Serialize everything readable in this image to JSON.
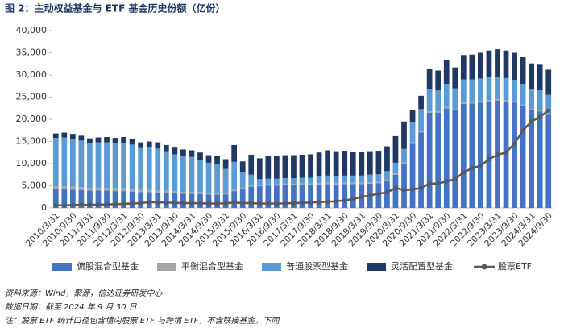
{
  "chart_data": {
    "type": "bar",
    "stacked": true,
    "title": "图 2：主动权益基金与 ETF 基金历史份额（亿份）",
    "categories": [
      "2010/3/31",
      null,
      "2010/9/30",
      null,
      "2011/3/31",
      null,
      "2011/9/30",
      null,
      "2012/3/31",
      null,
      "2012/9/30",
      null,
      "2013/3/31",
      null,
      "2013/9/30",
      null,
      "2014/3/31",
      null,
      "2014/9/30",
      null,
      "2015/3/31",
      null,
      "2015/9/30",
      null,
      "2016/3/31",
      null,
      "2016/9/30",
      null,
      "2017/3/31",
      null,
      "2017/9/30",
      null,
      "2018/3/31",
      null,
      "2018/9/30",
      null,
      "2019/3/31",
      null,
      "2019/9/30",
      null,
      "2020/3/31",
      null,
      "2020/9/30",
      null,
      "2021/3/31",
      null,
      "2021/9/30",
      null,
      "2022/3/31",
      null,
      "2022/9/30",
      null,
      "2023/3/31",
      null,
      "2023/9/30",
      null,
      "2024/3/31",
      null,
      "2024/9/30"
    ],
    "series": [
      {
        "name": "偏股混合型基金",
        "color": "#4472c4",
        "values": [
          4200,
          4200,
          4100,
          4000,
          3900,
          3900,
          3900,
          3800,
          3800,
          3700,
          3600,
          3600,
          3500,
          3400,
          3300,
          3200,
          3200,
          3100,
          3000,
          3000,
          3000,
          3800,
          4200,
          4800,
          4900,
          5000,
          5000,
          5100,
          5100,
          5200,
          5200,
          5300,
          5400,
          5300,
          5400,
          5400,
          5400,
          5500,
          5600,
          6000,
          7500,
          10000,
          14500,
          17000,
          21500,
          21500,
          22500,
          22000,
          23500,
          23600,
          23800,
          24000,
          24200,
          24000,
          23800,
          23000,
          22000,
          21800,
          21000
        ]
      },
      {
        "name": "平衡混合型基金",
        "color": "#a5a5a5",
        "values": [
          700,
          700,
          700,
          700,
          600,
          600,
          600,
          600,
          600,
          600,
          500,
          500,
          500,
          500,
          500,
          400,
          400,
          400,
          400,
          400,
          300,
          300,
          300,
          300,
          300,
          300,
          300,
          300,
          300,
          300,
          300,
          300,
          300,
          300,
          300,
          300,
          300,
          300,
          300,
          300,
          300,
          300,
          300,
          300,
          300,
          300,
          300,
          300,
          300,
          300,
          300,
          300,
          300,
          300,
          300,
          300,
          300,
          300,
          300
        ]
      },
      {
        "name": "普通股票型基金",
        "color": "#5b9bd5",
        "values": [
          10900,
          11000,
          10800,
          10500,
          10100,
          10300,
          10300,
          10200,
          10300,
          10000,
          9400,
          9500,
          9400,
          8900,
          8300,
          8100,
          7900,
          7400,
          6800,
          6600,
          5500,
          6300,
          3500,
          2400,
          1300,
          1300,
          1300,
          1300,
          1300,
          1300,
          1300,
          1500,
          1600,
          1600,
          1600,
          1600,
          1600,
          1700,
          1700,
          2000,
          2400,
          3000,
          4500,
          5000,
          5000,
          4700,
          5200,
          4700,
          5200,
          5100,
          5100,
          5200,
          5100,
          5000,
          4800,
          4700,
          4500,
          4400,
          4200
        ]
      },
      {
        "name": "灵活配置型基金",
        "color": "#203864",
        "values": [
          1000,
          1100,
          1100,
          1100,
          1100,
          1100,
          1200,
          1200,
          1300,
          1300,
          1300,
          1400,
          1400,
          1400,
          1500,
          1500,
          1500,
          1600,
          1700,
          1800,
          2200,
          3800,
          2500,
          4500,
          4700,
          5200,
          5200,
          5200,
          5200,
          5200,
          5300,
          5400,
          5700,
          5600,
          5600,
          5400,
          5300,
          5300,
          5300,
          5600,
          6000,
          6200,
          2700,
          3000,
          4500,
          4500,
          5300,
          4700,
          5500,
          5600,
          5800,
          6000,
          6200,
          6200,
          6100,
          6000,
          5800,
          5800,
          5700
        ]
      },
      {
        "name": "股票ETF",
        "color": "#595959",
        "type": "line",
        "values": [
          600,
          600,
          650,
          700,
          700,
          750,
          800,
          850,
          900,
          1000,
          1100,
          1300,
          1250,
          1200,
          1150,
          1100,
          1100,
          1050,
          1000,
          1000,
          1050,
          1200,
          1100,
          1100,
          1000,
          1000,
          1000,
          1050,
          1100,
          1150,
          1200,
          1300,
          1400,
          1500,
          1700,
          2000,
          2500,
          2800,
          3200,
          3500,
          4500,
          4000,
          4200,
          4500,
          5500,
          5500,
          6000,
          6500,
          8000,
          9000,
          9500,
          11000,
          12000,
          12500,
          14500,
          17500,
          19500,
          20500,
          22000
        ]
      }
    ],
    "ylim": [
      0,
      40000
    ],
    "yticks": [
      0,
      {
        "value": 5000,
        "label": "5,000"
      },
      {
        "value": 10000,
        "label": "10,000"
      },
      {
        "value": 15000,
        "label": "15,000"
      },
      {
        "value": 20000,
        "label": "20,000"
      },
      {
        "value": 25000,
        "label": "25,000"
      },
      {
        "value": 30000,
        "label": "30,000"
      },
      {
        "value": 35000,
        "label": "35,000"
      },
      {
        "value": 40000,
        "label": "40,000"
      }
    ],
    "grid": false,
    "legend": "bottom",
    "notes": [
      "资料来源：Wind，聚源，信达证券研发中心",
      "数据日期：截至 2024 年 9 月 30 日",
      "注：股票 ETF 统计口径包含境内股票 ETF 与跨境 ETF，不含联接基金，下同"
    ]
  }
}
